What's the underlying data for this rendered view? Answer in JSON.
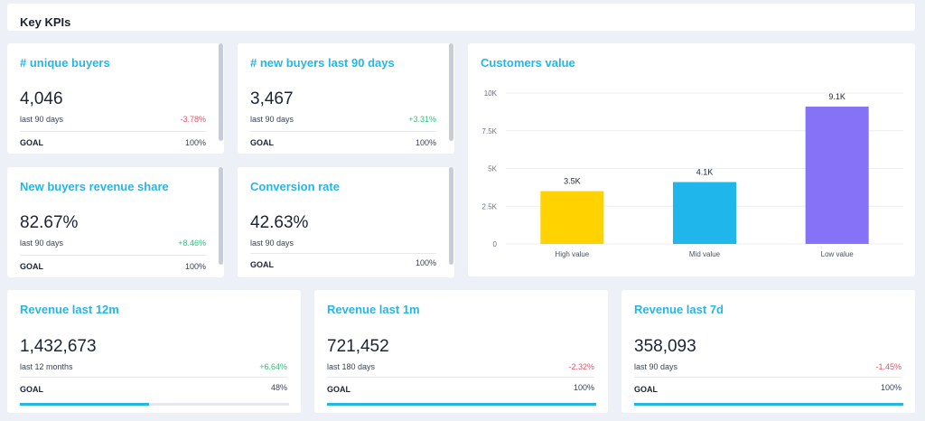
{
  "header": {
    "title": "Key KPIs"
  },
  "kpis": {
    "unique_buyers": {
      "title": "# unique buyers",
      "value": "4,046",
      "period": "last 90 days",
      "delta": "-3.78%",
      "goal_label": "GOAL",
      "goal_value": "100%"
    },
    "new_buyers_90": {
      "title": "# new buyers last 90 days",
      "value": "3,467",
      "period": "last 90 days",
      "delta": "+3.31%",
      "goal_label": "GOAL",
      "goal_value": "100%"
    },
    "new_buyers_rev": {
      "title": "New buyers revenue share",
      "value": "82.67%",
      "period": "last 90 days",
      "delta": "+8.46%",
      "goal_label": "GOAL",
      "goal_value": "100%"
    },
    "conversion": {
      "title": "Conversion rate",
      "value": "42.63%",
      "period": "last 90 days",
      "goal_label": "GOAL",
      "goal_value": "100%"
    },
    "rev_12m": {
      "title": "Revenue last 12m",
      "value": "1,432,673",
      "period": "last 12 months",
      "delta": "+6.64%",
      "goal_label": "GOAL",
      "goal_value": "48%",
      "progress": 0.48
    },
    "rev_1m": {
      "title": "Revenue last 1m",
      "value": "721,452",
      "period": "last 180 days",
      "delta": "-2.32%",
      "goal_label": "GOAL",
      "goal_value": "100%",
      "progress": 1.0
    },
    "rev_7d": {
      "title": "Revenue last 7d",
      "value": "358,093",
      "period": "last 90 days",
      "delta": "-1.45%",
      "goal_label": "GOAL",
      "goal_value": "100%",
      "progress": 1.0
    }
  },
  "colors": {
    "accent": "#26b6e6",
    "up": "#2ec27e",
    "down": "#e8506a"
  },
  "chart_data": {
    "type": "bar",
    "title": "Customers value",
    "categories": [
      "High value",
      "Mid value",
      "Low value"
    ],
    "values": [
      3500,
      4100,
      9100
    ],
    "labels": [
      "3.5K",
      "4.1K",
      "9.1K"
    ],
    "colors": [
      "#ffd200",
      "#1fb6ec",
      "#8572f7"
    ],
    "yticks": [
      0,
      2500,
      5000,
      7500,
      10000
    ],
    "ytick_labels": [
      "0",
      "2.5K",
      "5K",
      "7.5K",
      "10K"
    ],
    "ylim": [
      0,
      10000
    ],
    "grid": true
  }
}
